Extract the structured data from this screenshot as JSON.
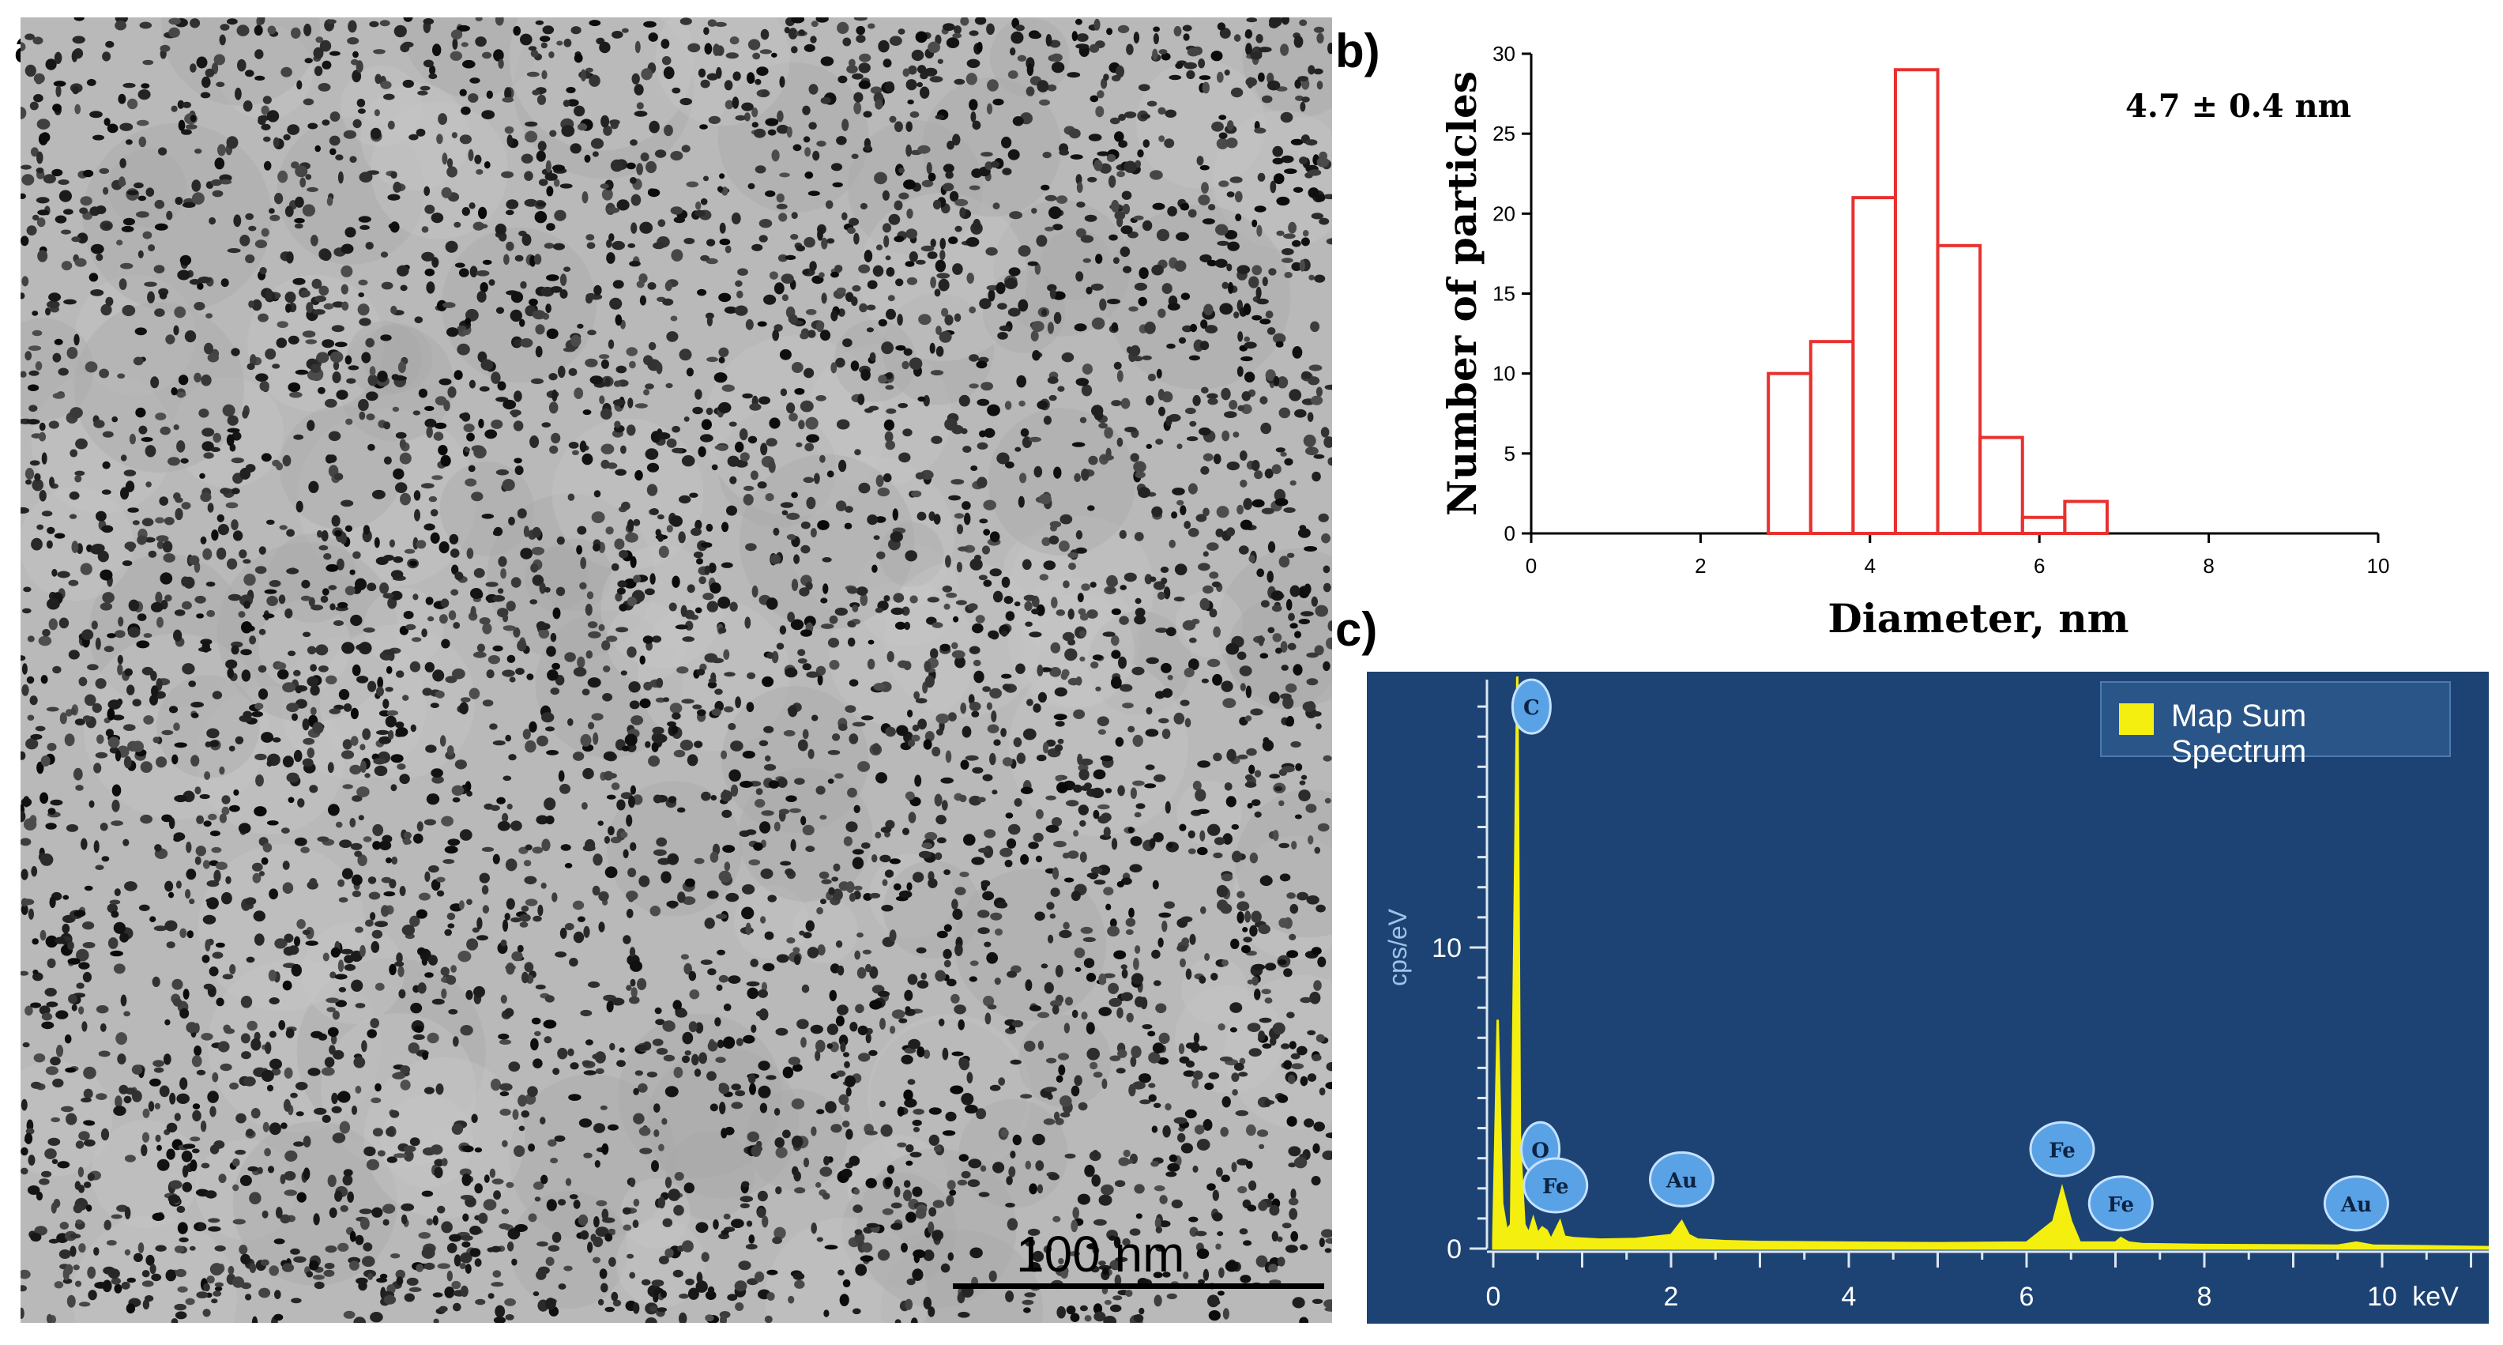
{
  "panels": {
    "a": {
      "label": "a)",
      "scale_bar": "100 nm"
    },
    "b": {
      "label": "b)"
    },
    "c": {
      "label": "c)"
    }
  },
  "chart_data": [
    {
      "type": "bar",
      "title": "",
      "annotation": "4.7 ± 0.4 nm",
      "xlabel": "Diameter, nm",
      "ylabel": "Number of particles",
      "bin_edges": [
        2.8,
        3.3,
        3.8,
        4.3,
        4.8,
        5.3,
        5.8,
        6.3,
        6.8
      ],
      "values": [
        10,
        12,
        21,
        29,
        18,
        6,
        1,
        2
      ],
      "xlim": [
        0,
        10
      ],
      "ylim": [
        0,
        30
      ],
      "xticks": [
        "0",
        "2",
        "4",
        "6",
        "8",
        "10"
      ],
      "yticks": [
        "0",
        "5",
        "10",
        "15",
        "20",
        "25",
        "30"
      ],
      "bar_color": "#e8312f"
    },
    {
      "type": "line",
      "title": "",
      "legend": [
        "Map Sum Spectrum"
      ],
      "xlabel": "keV",
      "ylabel": "cps/eV",
      "xlim": [
        0,
        11.2
      ],
      "ylim": [
        0,
        19
      ],
      "xticks": [
        "0",
        "2",
        "4",
        "6",
        "8",
        "10"
      ],
      "yticks": [
        "0",
        "10"
      ],
      "series": [
        {
          "name": "Map Sum Spectrum",
          "color": "#f5ef10",
          "x": [
            0.0,
            0.05,
            0.1,
            0.15,
            0.2,
            0.27,
            0.3,
            0.35,
            0.4,
            0.45,
            0.5,
            0.55,
            0.6,
            0.65,
            0.7,
            0.75,
            0.8,
            0.9,
            1.2,
            1.6,
            2.0,
            2.12,
            2.2,
            2.3,
            2.6,
            3.0,
            4.0,
            5.0,
            6.0,
            6.3,
            6.4,
            6.5,
            6.6,
            7.0,
            7.06,
            7.15,
            7.3,
            8.0,
            9.5,
            9.71,
            9.9,
            10.5,
            11.2
          ],
          "y": [
            0.3,
            7.6,
            1.5,
            0.6,
            0.8,
            19.0,
            3.5,
            0.8,
            0.5,
            1.0,
            0.5,
            0.7,
            0.6,
            0.3,
            0.6,
            0.9,
            0.4,
            0.35,
            0.3,
            0.32,
            0.45,
            0.9,
            0.45,
            0.3,
            0.25,
            0.22,
            0.2,
            0.18,
            0.2,
            0.9,
            2.0,
            0.9,
            0.2,
            0.2,
            0.35,
            0.2,
            0.15,
            0.12,
            0.1,
            0.2,
            0.1,
            0.08,
            0.05
          ]
        }
      ],
      "peak_labels": [
        {
          "text": "C",
          "x": 0.27,
          "y": 18.0
        },
        {
          "text": "O",
          "x": 0.53,
          "y": 3.3
        },
        {
          "text": "Fe",
          "x": 0.7,
          "y": 2.1
        },
        {
          "text": "Au",
          "x": 2.12,
          "y": 2.3
        },
        {
          "text": "Fe",
          "x": 6.4,
          "y": 3.3
        },
        {
          "text": "Fe",
          "x": 7.06,
          "y": 1.5
        },
        {
          "text": "Au",
          "x": 9.71,
          "y": 1.5
        }
      ]
    }
  ]
}
